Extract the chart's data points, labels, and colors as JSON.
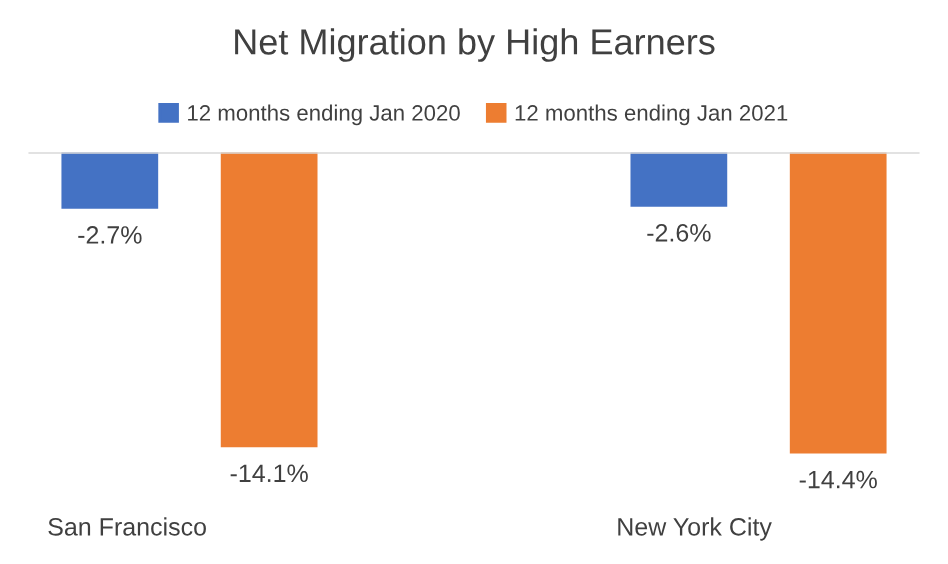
{
  "chart_data": {
    "type": "bar",
    "title": "Net Migration by High Earners",
    "categories": [
      "San Francisco",
      "New York City"
    ],
    "series": [
      {
        "name": "12 months ending Jan 2020",
        "color": "#4472c4",
        "values": [
          -2.7,
          -2.6
        ],
        "value_labels": [
          "-2.7%",
          "-2.6%"
        ]
      },
      {
        "name": "12 months ending Jan 2021",
        "color": "#ed7d31",
        "values": [
          -14.1,
          -14.4
        ],
        "value_labels": [
          "-14.1%",
          "-14.4%"
        ]
      }
    ],
    "legend": "top",
    "grid": false
  }
}
